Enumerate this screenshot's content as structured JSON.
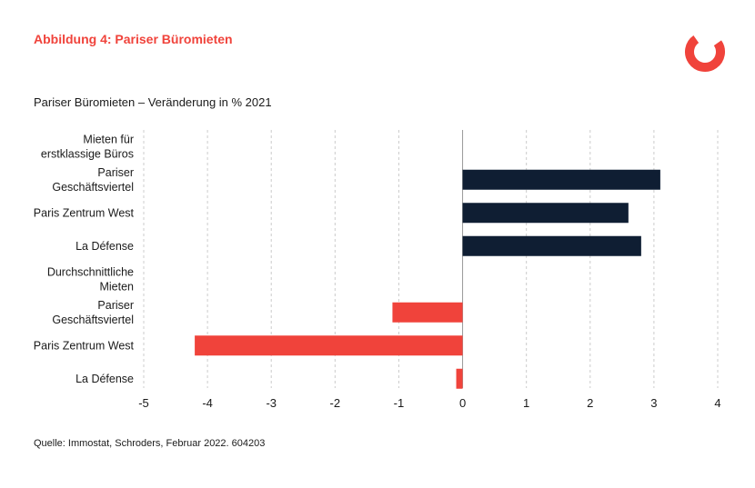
{
  "figure_label": "Abbildung 4: Pariser Büromieten",
  "source": "Quelle: Immostat, Schroders, Februar 2022. 604203",
  "colors": {
    "accent": "#f0433b",
    "navy": "#0f1e33",
    "grid": "#cccccc"
  },
  "logo": {
    "icon": "schroders-logo-icon"
  },
  "chart_data": {
    "type": "bar",
    "orientation": "horizontal",
    "title": "Pariser Büromieten – Veränderung in % 2021",
    "xlabel": "",
    "ylabel": "",
    "xlim": [
      -5,
      4
    ],
    "xticks": [
      -5,
      -4,
      -3,
      -2,
      -1,
      0,
      1,
      2,
      3,
      4
    ],
    "grid": "vertical dashed",
    "categories": [
      {
        "lines": [
          "Mieten für",
          "erstklassige Büros"
        ],
        "value": null,
        "group": "heading"
      },
      {
        "lines": [
          "Pariser",
          "Geschäftsviertel"
        ],
        "value": 3.1,
        "group": "erstklassig"
      },
      {
        "lines": [
          "Paris Zentrum West"
        ],
        "value": 2.6,
        "group": "erstklassig"
      },
      {
        "lines": [
          "La Défense"
        ],
        "value": 2.8,
        "group": "erstklassig"
      },
      {
        "lines": [
          "Durchschnittliche",
          "Mieten"
        ],
        "value": null,
        "group": "heading"
      },
      {
        "lines": [
          "Pariser",
          "Geschäftsviertel"
        ],
        "value": -1.1,
        "group": "durchschnitt"
      },
      {
        "lines": [
          "Paris Zentrum West"
        ],
        "value": -4.2,
        "group": "durchschnitt"
      },
      {
        "lines": [
          "La Défense"
        ],
        "value": -0.1,
        "group": "durchschnitt"
      }
    ]
  }
}
